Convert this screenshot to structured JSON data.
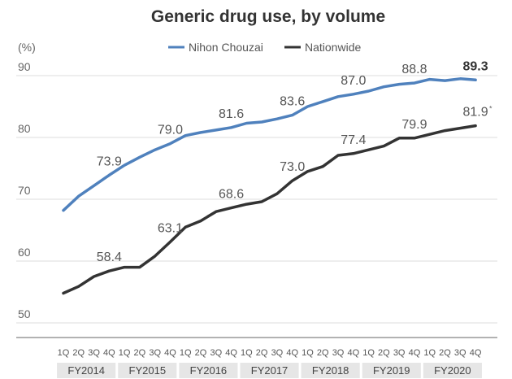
{
  "chart_data": {
    "type": "line",
    "title": "Generic drug use, by volume",
    "yunit": "(%)",
    "ylim": [
      50,
      90
    ],
    "yticks": [
      50,
      60,
      70,
      80,
      90
    ],
    "grid": true,
    "legend_position": "top-center",
    "quarter_labels": [
      "1Q",
      "2Q",
      "3Q",
      "4Q"
    ],
    "fiscal_years": [
      "FY2014",
      "FY2015",
      "FY2016",
      "FY2017",
      "FY2018",
      "FY2019",
      "FY2020"
    ],
    "series": [
      {
        "name": "Nihon Chouzai",
        "color": "#4f81bd",
        "values": [
          68.2,
          70.5,
          72.2,
          73.9,
          75.5,
          76.8,
          78.0,
          79.0,
          80.3,
          80.8,
          81.2,
          81.6,
          82.3,
          82.5,
          83.0,
          83.6,
          85.0,
          85.8,
          86.6,
          87.0,
          87.5,
          88.2,
          88.6,
          88.8,
          89.4,
          89.2,
          89.5,
          89.3
        ],
        "labels": [
          {
            "index": 3,
            "text": "73.9",
            "bold": false
          },
          {
            "index": 7,
            "text": "79.0",
            "bold": false
          },
          {
            "index": 11,
            "text": "81.6",
            "bold": false
          },
          {
            "index": 15,
            "text": "83.6",
            "bold": false
          },
          {
            "index": 19,
            "text": "87.0",
            "bold": false
          },
          {
            "index": 23,
            "text": "88.8",
            "bold": false
          },
          {
            "index": 27,
            "text": "89.3",
            "bold": true
          }
        ]
      },
      {
        "name": "Nationwide",
        "color": "#333333",
        "values": [
          54.8,
          55.9,
          57.5,
          58.4,
          59.0,
          59.0,
          60.8,
          63.1,
          65.5,
          66.5,
          68.0,
          68.6,
          69.2,
          69.6,
          70.9,
          73.0,
          74.5,
          75.3,
          77.1,
          77.4,
          78.0,
          78.6,
          79.9,
          79.9,
          80.5,
          81.1,
          81.5,
          81.9
        ],
        "labels": [
          {
            "index": 3,
            "text": "58.4",
            "bold": false
          },
          {
            "index": 7,
            "text": "63.1",
            "bold": false
          },
          {
            "index": 11,
            "text": "68.6",
            "bold": false
          },
          {
            "index": 15,
            "text": "73.0",
            "bold": false
          },
          {
            "index": 19,
            "text": "77.4",
            "bold": false
          },
          {
            "index": 23,
            "text": "79.9",
            "bold": false
          },
          {
            "index": 27,
            "text": "81.9",
            "bold": false
          }
        ],
        "footnote_mark": "*"
      }
    ]
  }
}
